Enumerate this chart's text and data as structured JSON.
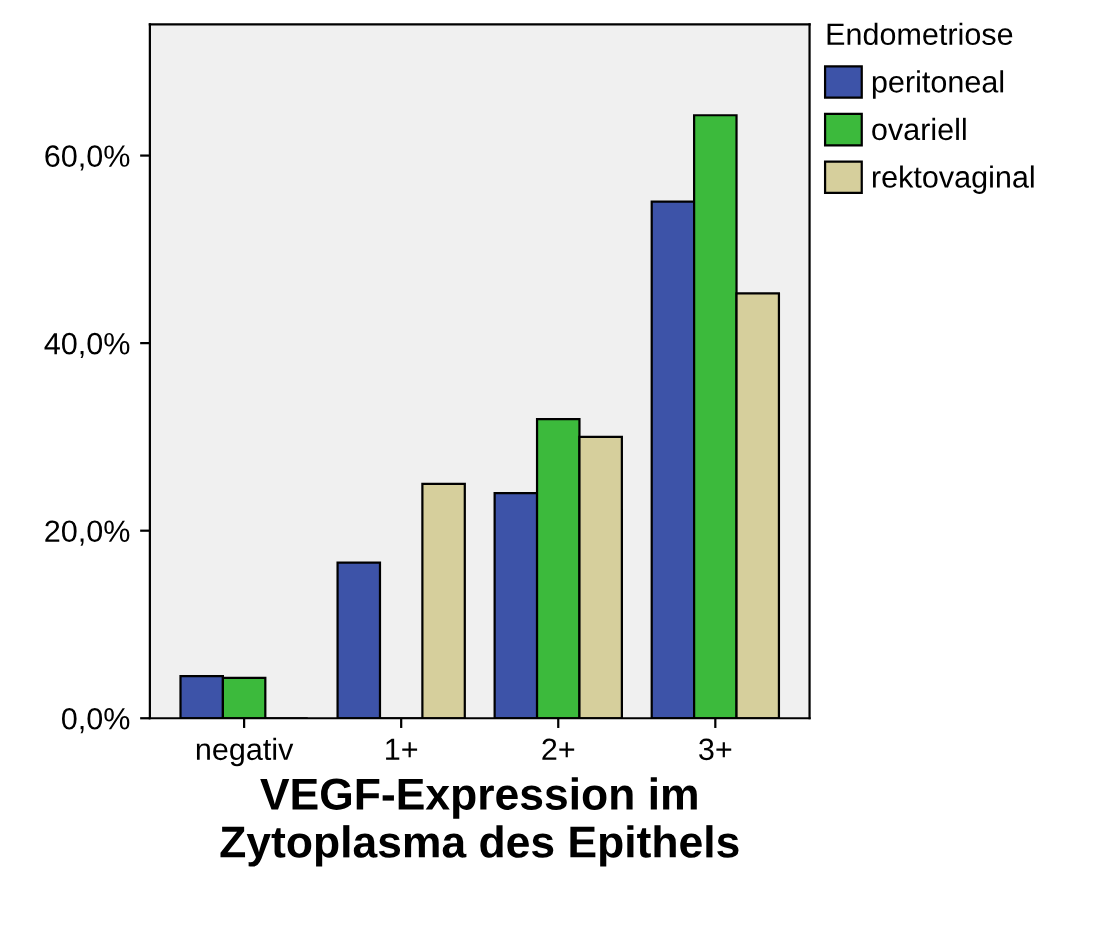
{
  "chart_data": {
    "type": "bar",
    "xlabel": "VEGF-Expression im\nZytoplasma des Epithels",
    "legend_title": "Endometriose",
    "legend": "right",
    "categories": [
      "negativ",
      "1+",
      "2+",
      "3+"
    ],
    "series": [
      {
        "name": "peritoneal",
        "color": "#3d53a8",
        "values": [
          4.5,
          16.6,
          24.0,
          55.1
        ]
      },
      {
        "name": "ovariell",
        "color": "#3cba3c",
        "values": [
          4.3,
          0,
          31.9,
          64.3
        ]
      },
      {
        "name": "rektovaginal",
        "color": "#d6cf9c",
        "values": [
          0,
          25.0,
          30.0,
          45.3
        ]
      }
    ],
    "ylim": [
      0,
      74
    ],
    "yticks": [
      {
        "value": 0,
        "label": "0,0%"
      },
      {
        "value": 20,
        "label": "20,0%"
      },
      {
        "value": 40,
        "label": "40,0%"
      },
      {
        "value": 60,
        "label": "60,0%"
      }
    ]
  }
}
